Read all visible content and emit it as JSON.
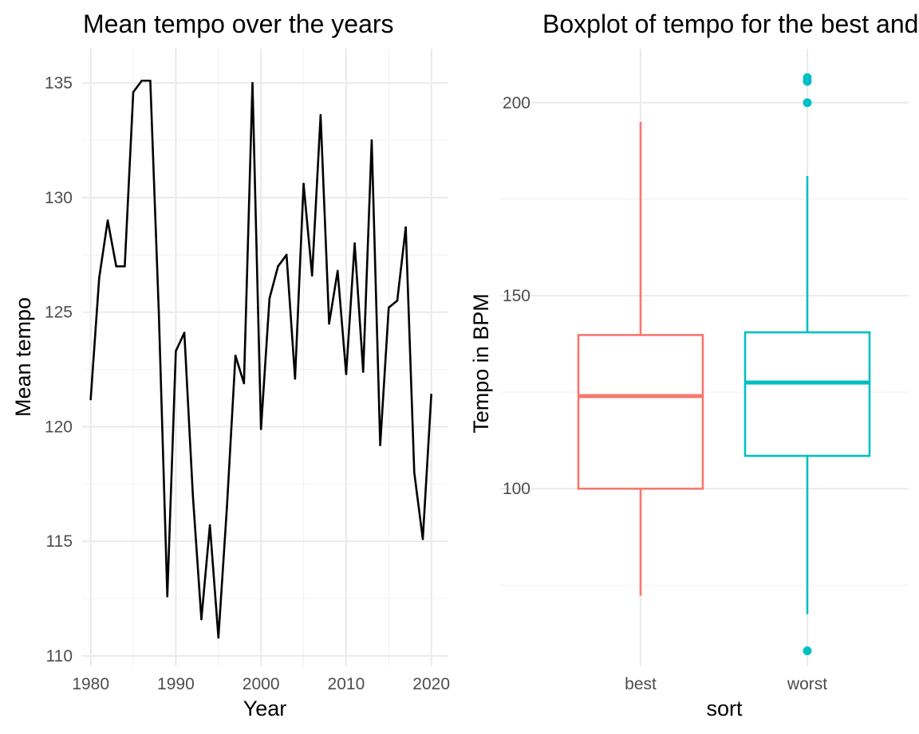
{
  "chart_data": [
    {
      "type": "line",
      "title": "Mean tempo over the years",
      "xlabel": "Year",
      "ylabel": "Mean tempo",
      "xlim": [
        1979,
        2022
      ],
      "ylim": [
        110,
        136.5
      ],
      "x_ticks": [
        1980,
        1990,
        2000,
        2010,
        2020
      ],
      "y_ticks": [
        110,
        115,
        120,
        125,
        130,
        135
      ],
      "grid": true,
      "line_color": "#000000",
      "series": [
        {
          "x": [
            1980,
            1981,
            1982,
            1983,
            1984,
            1985,
            1986,
            1987,
            1988,
            1989,
            1990,
            1991,
            1992,
            1993,
            1994,
            1995,
            1996,
            1997,
            1998,
            1999,
            2000,
            2001,
            2002,
            2003,
            2004,
            2005,
            2006,
            2007,
            2008,
            2009,
            2010,
            2011,
            2012,
            2013,
            2014,
            2015,
            2016,
            2017,
            2018,
            2019,
            2020
          ],
          "y": [
            121.2,
            126.5,
            129.0,
            127.0,
            127.0,
            134.6,
            135.1,
            135.1,
            125.0,
            112.6,
            123.3,
            124.1,
            117.0,
            111.6,
            115.7,
            110.8,
            116.5,
            123.1,
            121.9,
            135.0,
            119.9,
            125.6,
            127.0,
            127.5,
            122.1,
            130.6,
            126.6,
            133.6,
            124.5,
            126.8,
            122.3,
            128.0,
            122.4,
            132.5,
            119.2,
            125.2,
            125.5,
            128.7,
            118.0,
            115.1,
            121.4
          ]
        }
      ]
    },
    {
      "type": "box",
      "title": "Boxplot of tempo for the best and worst songs",
      "xlabel": "sort",
      "ylabel": "Tempo in BPM",
      "ylim": [
        54,
        214
      ],
      "y_ticks": [
        100,
        150,
        200
      ],
      "grid": true,
      "categories": [
        "best",
        "worst"
      ],
      "colors": [
        "#f8766d",
        "#00bfc4"
      ],
      "boxes": [
        {
          "name": "best",
          "whisker_low": 72.3,
          "q1": 100.0,
          "median": 124.0,
          "q3": 139.8,
          "whisker_high": 195.0,
          "outliers": []
        },
        {
          "name": "worst",
          "whisker_low": 67.5,
          "q1": 108.5,
          "median": 127.5,
          "q3": 140.5,
          "whisker_high": 181.0,
          "outliers": [
            58.0,
            200.0,
            205.5,
            206.5
          ]
        }
      ]
    }
  ]
}
